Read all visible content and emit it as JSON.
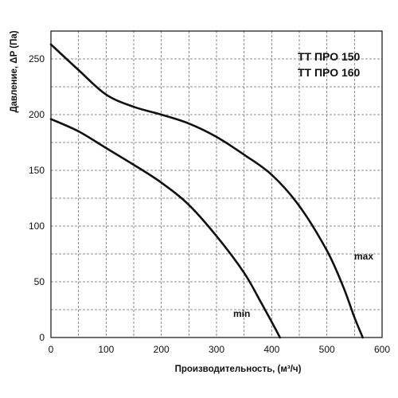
{
  "chart_data": {
    "type": "line",
    "xlabel": "Производительность, (м³/ч)",
    "ylabel": "Давление, ΔP (Па)",
    "xlim": [
      0,
      600
    ],
    "ylim": [
      0,
      275
    ],
    "x_ticks": [
      "0",
      "100",
      "200",
      "300",
      "400",
      "500",
      "600"
    ],
    "y_ticks": [
      "0",
      "50",
      "100",
      "150",
      "200",
      "250"
    ],
    "grid": true,
    "annotations": [
      "ТТ ПРО 150",
      "ТТ ПРО 160"
    ],
    "series": [
      {
        "name": "max",
        "points": [
          [
            0,
            263
          ],
          [
            50,
            240
          ],
          [
            100,
            218
          ],
          [
            150,
            207
          ],
          [
            200,
            200
          ],
          [
            250,
            192
          ],
          [
            300,
            180
          ],
          [
            350,
            164
          ],
          [
            400,
            146
          ],
          [
            450,
            118
          ],
          [
            500,
            78
          ],
          [
            530,
            45
          ],
          [
            550,
            18
          ],
          [
            565,
            0
          ]
        ]
      },
      {
        "name": "min",
        "points": [
          [
            0,
            196
          ],
          [
            50,
            185
          ],
          [
            100,
            170
          ],
          [
            150,
            155
          ],
          [
            200,
            139
          ],
          [
            250,
            119
          ],
          [
            300,
            91
          ],
          [
            350,
            58
          ],
          [
            380,
            32
          ],
          [
            400,
            14
          ],
          [
            415,
            0
          ]
        ]
      }
    ]
  }
}
